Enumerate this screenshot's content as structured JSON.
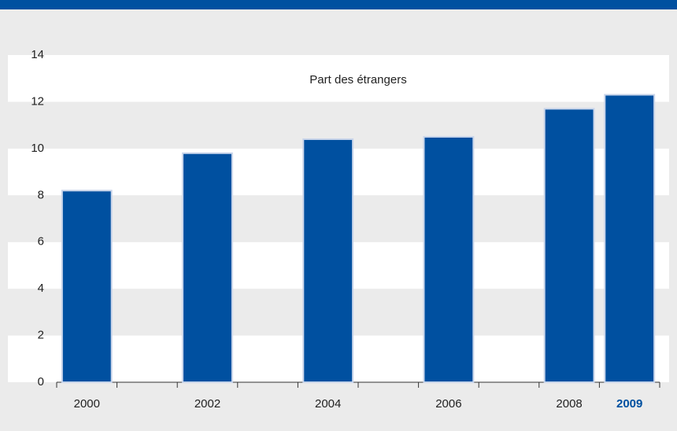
{
  "chart_data": {
    "type": "bar",
    "annotation": "Part des étrangers",
    "categories": [
      "2000",
      null,
      "2002",
      null,
      "2004",
      null,
      "2006",
      null,
      "2008",
      "2009"
    ],
    "values": [
      8.2,
      null,
      9.8,
      null,
      10.4,
      null,
      10.5,
      null,
      11.7,
      12.3
    ],
    "color": "#0050a0",
    "ylim": [
      0,
      14
    ],
    "yticks": [
      0,
      2,
      4,
      6,
      8,
      10,
      12,
      14
    ],
    "grid": true
  }
}
